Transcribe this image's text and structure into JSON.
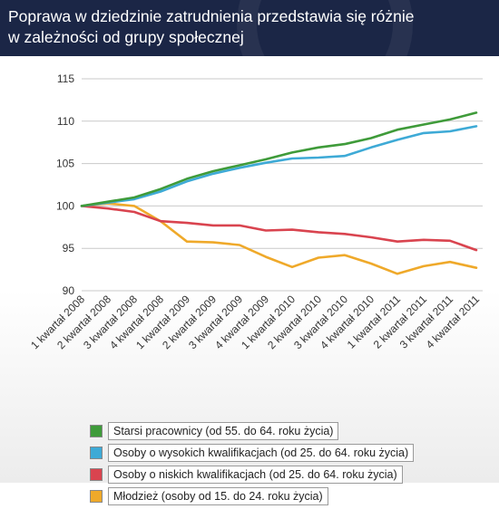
{
  "header": {
    "title_line1": "Poprawa w dziedzinie zatrudnienia przedstawia się różnie",
    "title_line2": "w zależności od grupy społecznej"
  },
  "chart_data": {
    "type": "line",
    "categories": [
      "1 kwartał 2008",
      "2 kwartał 2008",
      "3 kwartał 2008",
      "4 kwartał 2008",
      "1 kwartał 2009",
      "2 kwartał 2009",
      "3 kwartał 2009",
      "4 kwartał 2009",
      "1 kwartał 2010",
      "2 kwartał 2010",
      "3 kwartał 2010",
      "4 kwartał 2010",
      "1 kwartał 2011",
      "2 kwartał 2011",
      "3 kwartał 2011",
      "4 kwartał 2011"
    ],
    "ylim": [
      90,
      115
    ],
    "yticks": [
      90,
      95,
      100,
      105,
      110,
      115
    ],
    "grid": true,
    "legend_position": "bottom",
    "series": [
      {
        "name": "Starsi pracownicy (od 55. do 64. roku życia)",
        "color": "#3f9b3a",
        "values": [
          100,
          100.5,
          101.0,
          102.0,
          103.2,
          104.1,
          104.8,
          105.5,
          106.3,
          106.9,
          107.3,
          108.0,
          109.0,
          109.6,
          110.2,
          111.0
        ]
      },
      {
        "name": "Osoby o wysokich kwalifikacjach (od 25. do 64. roku życia)",
        "color": "#3eaad6",
        "values": [
          100,
          100.4,
          100.8,
          101.7,
          102.9,
          103.8,
          104.5,
          105.1,
          105.6,
          105.7,
          105.9,
          106.9,
          107.8,
          108.6,
          108.8,
          109.4
        ]
      },
      {
        "name": "Osoby o niskich kwalifikacjach (od 25. do 64. roku życia)",
        "color": "#d9444f",
        "values": [
          100,
          99.7,
          99.3,
          98.2,
          98.0,
          97.7,
          97.7,
          97.1,
          97.2,
          96.9,
          96.7,
          96.3,
          95.8,
          96.0,
          95.9,
          94.8
        ]
      },
      {
        "name": "Młodzież (osoby od 15. do 24. roku życia)",
        "color": "#efa92a",
        "values": [
          100,
          100.3,
          100.0,
          98.2,
          95.8,
          95.7,
          95.4,
          94.0,
          92.8,
          93.9,
          94.2,
          93.2,
          92.0,
          92.9,
          93.4,
          92.7
        ]
      }
    ]
  }
}
